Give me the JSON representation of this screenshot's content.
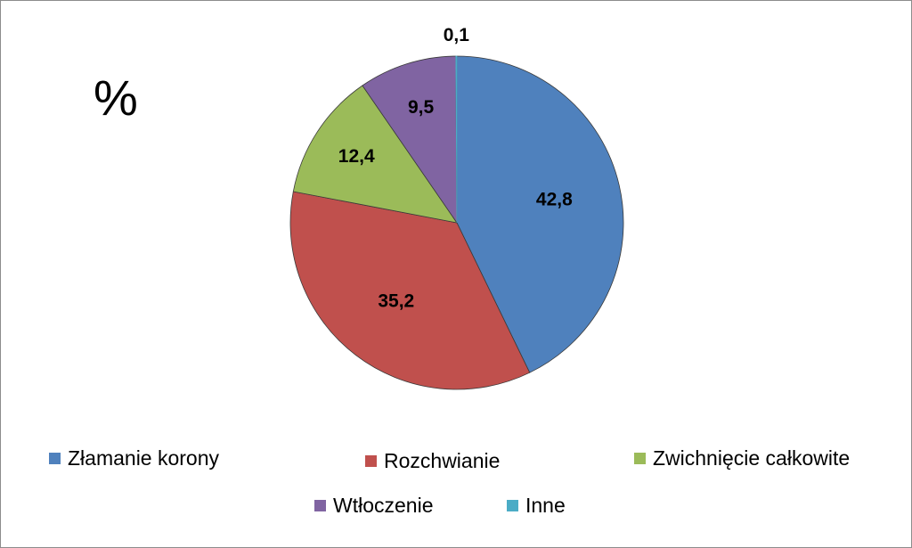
{
  "chart_data": {
    "type": "pie",
    "unit": "%",
    "slices": [
      {
        "name": "Złamanie korony",
        "value": 42.8,
        "label": "42,8",
        "color": "#4f81bd"
      },
      {
        "name": "Rozchwianie",
        "value": 35.2,
        "label": "35,2",
        "color": "#c0504d"
      },
      {
        "name": "Zwichnięcie całkowite",
        "value": 12.4,
        "label": "12,4",
        "color": "#9bbb59"
      },
      {
        "name": "Wtłoczenie",
        "value": 9.5,
        "label": "9,5",
        "color": "#8064a2"
      },
      {
        "name": "Inne",
        "value": 0.1,
        "label": "0,1",
        "color": "#4bacc6"
      }
    ],
    "legend_position": "bottom"
  }
}
